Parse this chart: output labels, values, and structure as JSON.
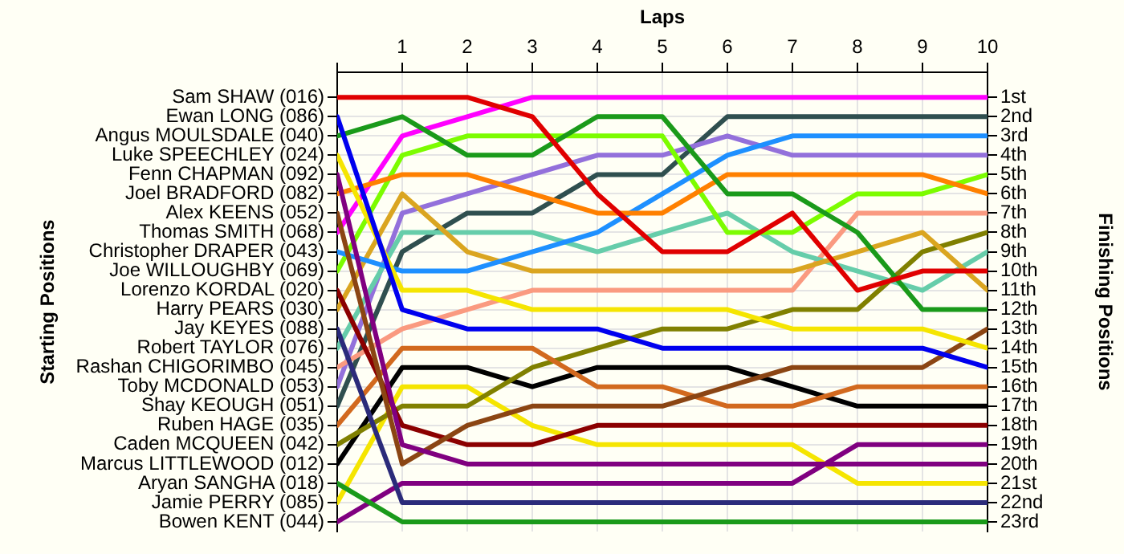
{
  "chart_data": {
    "type": "line",
    "xlabel": "Laps",
    "annotations": [
      "Starting Positions"
    ],
    "y2label": "Finishing Positions",
    "x": [
      0,
      1,
      2,
      3,
      4,
      5,
      6,
      7,
      8,
      9,
      10
    ],
    "xlim": [
      0,
      10
    ],
    "xticks": [
      {
        "value": 0,
        "label": null
      },
      1,
      2,
      3,
      4,
      5,
      6,
      7,
      8,
      9,
      10
    ],
    "y_categories": [
      "Sam SHAW (016)",
      "Ewan LONG (086)",
      "Angus MOULSDALE (040)",
      "Luke SPEECHLEY (024)",
      "Fenn CHAPMAN (092)",
      "Joel BRADFORD (082)",
      "Alex KEENS (052)",
      "Thomas SMITH (068)",
      "Christopher DRAPER (043)",
      "Joe WILLOUGHBY (069)",
      "Lorenzo KORDAL (020)",
      "Harry PEARS (030)",
      "Jay KEYES (088)",
      "Robert TAYLOR (076)",
      "Rashan CHIGORIMBO (045)",
      "Toby MCDONALD (053)",
      "Shay KEOUGH (051)",
      "Ruben HAGE (035)",
      "Caden MCQUEEN (042)",
      "Marcus LITTLEWOOD (012)",
      "Aryan SANGHA (018)",
      "Jamie PERRY (085)",
      "Bowen KENT (044)"
    ],
    "y2lim": [
      23.5,
      -0.3
    ],
    "y2ticks": [
      {
        "value": 1,
        "label": "1st"
      },
      {
        "value": 2,
        "label": "2nd"
      },
      {
        "value": 3,
        "label": "3rd"
      },
      {
        "value": 4,
        "label": "4th"
      },
      {
        "value": 5,
        "label": "5th"
      },
      {
        "value": 6,
        "label": "6th"
      },
      {
        "value": 7,
        "label": "7th"
      },
      {
        "value": 8,
        "label": "8th"
      },
      {
        "value": 9,
        "label": "9th"
      },
      {
        "value": 10,
        "label": "10th"
      },
      {
        "value": 11,
        "label": "11th"
      },
      {
        "value": 12,
        "label": "12th"
      },
      {
        "value": 13,
        "label": "13th"
      },
      {
        "value": 14,
        "label": "14th"
      },
      {
        "value": 15,
        "label": "15th"
      },
      {
        "value": 16,
        "label": "16th"
      },
      {
        "value": 17,
        "label": "17th"
      },
      {
        "value": 18,
        "label": "18th"
      },
      {
        "value": 19,
        "label": "19th"
      },
      {
        "value": 20,
        "label": "20th"
      },
      {
        "value": 21,
        "label": "21st"
      },
      {
        "value": 22,
        "label": "22nd"
      },
      {
        "value": 23,
        "label": "23rd"
      }
    ],
    "grid": true,
    "legend": false,
    "marker": "none",
    "line_style": "solid",
    "series": [
      {
        "axis": "y2",
        "color": "#e00000",
        "values": [
          1,
          1,
          1,
          2,
          6,
          9,
          9,
          7,
          11,
          10,
          10
        ]
      },
      {
        "axis": "y2",
        "color": "#0000ee",
        "values": [
          2,
          12,
          13,
          13,
          13,
          14,
          14,
          14,
          14,
          14,
          15
        ]
      },
      {
        "axis": "y2",
        "color": "#1a9a1a",
        "values": [
          3,
          2,
          4,
          4,
          2,
          2,
          6,
          6,
          8,
          12,
          12
        ]
      },
      {
        "axis": "y2",
        "color": "#f5e500",
        "values": [
          4,
          11,
          11,
          12,
          12,
          12,
          12,
          13,
          13,
          13,
          14
        ]
      },
      {
        "axis": "y2",
        "color": "#800080",
        "values": [
          5,
          19,
          20,
          20,
          20,
          20,
          20,
          20,
          20,
          20,
          20
        ]
      },
      {
        "axis": "y2",
        "color": "#ff8000",
        "values": [
          6,
          5,
          5,
          6,
          7,
          7,
          5,
          5,
          5,
          5,
          6
        ]
      },
      {
        "axis": "y2",
        "color": "#8b4513",
        "values": [
          7,
          20,
          18,
          17,
          17,
          17,
          16,
          15,
          15,
          15,
          13
        ]
      },
      {
        "axis": "y2",
        "color": "#ff00ff",
        "values": [
          8,
          3,
          2,
          1,
          1,
          1,
          1,
          1,
          1,
          1,
          1
        ]
      },
      {
        "axis": "y2",
        "color": "#1e90ff",
        "values": [
          9,
          10,
          10,
          9,
          8,
          6,
          4,
          3,
          3,
          3,
          3
        ]
      },
      {
        "axis": "y2",
        "color": "#7cfc00",
        "values": [
          10,
          4,
          3,
          3,
          3,
          3,
          8,
          8,
          6,
          6,
          5
        ]
      },
      {
        "axis": "y2",
        "color": "#8b0000",
        "values": [
          11,
          18,
          19,
          19,
          18,
          18,
          18,
          18,
          18,
          18,
          18
        ]
      },
      {
        "axis": "y2",
        "color": "#daa520",
        "values": [
          12,
          6,
          9,
          10,
          10,
          10,
          10,
          10,
          9,
          8,
          11
        ]
      },
      {
        "axis": "y2",
        "color": "#2b2b7a",
        "values": [
          13,
          22,
          22,
          22,
          22,
          22,
          22,
          22,
          22,
          22,
          22
        ]
      },
      {
        "axis": "y2",
        "color": "#66cdaa",
        "values": [
          14,
          8,
          8,
          8,
          9,
          8,
          7,
          9,
          10,
          11,
          9
        ]
      },
      {
        "axis": "y2",
        "color": "#fa9a80",
        "values": [
          15,
          13,
          12,
          11,
          11,
          11,
          11,
          11,
          7,
          7,
          7
        ]
      },
      {
        "axis": "y2",
        "color": "#9370db",
        "values": [
          16,
          7,
          6,
          5,
          4,
          4,
          3,
          4,
          4,
          4,
          4
        ]
      },
      {
        "axis": "y2",
        "color": "#2f4f4f",
        "values": [
          17,
          9,
          7,
          7,
          5,
          5,
          2,
          2,
          2,
          2,
          2
        ]
      },
      {
        "axis": "y2",
        "color": "#d2691e",
        "values": [
          18,
          14,
          14,
          14,
          16,
          16,
          17,
          17,
          16,
          16,
          16
        ]
      },
      {
        "axis": "y2",
        "color": "#808000",
        "values": [
          19,
          17,
          17,
          15,
          14,
          13,
          13,
          12,
          12,
          9,
          8
        ]
      },
      {
        "axis": "y2",
        "color": "#000000",
        "values": [
          20,
          15,
          15,
          16,
          15,
          15,
          15,
          16,
          17,
          17,
          17
        ]
      },
      {
        "axis": "y2",
        "color": "#1a9a1a",
        "values": [
          21,
          23,
          23,
          23,
          23,
          23,
          23,
          23,
          23,
          23,
          23
        ]
      },
      {
        "axis": "y2",
        "color": "#f5e500",
        "values": [
          22,
          16,
          16,
          18,
          19,
          19,
          19,
          19,
          21,
          21,
          21
        ]
      },
      {
        "axis": "y2",
        "color": "#800080",
        "values": [
          23,
          21,
          21,
          21,
          21,
          21,
          21,
          21,
          19,
          19,
          19
        ]
      }
    ]
  }
}
